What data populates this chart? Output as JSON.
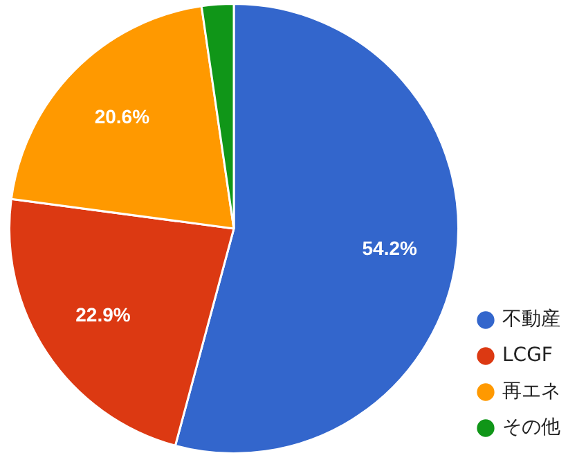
{
  "chart_data": {
    "type": "pie",
    "categories": [
      "不動産",
      "LCGF",
      "再エネ",
      "その他"
    ],
    "values": [
      54.2,
      22.9,
      20.6,
      2.3
    ],
    "colors": [
      "#3366cc",
      "#dc3912",
      "#ff9900",
      "#109618"
    ],
    "value_labels": [
      "54.2%",
      "22.9%",
      "20.6%",
      null
    ],
    "legend": "bottom right"
  }
}
